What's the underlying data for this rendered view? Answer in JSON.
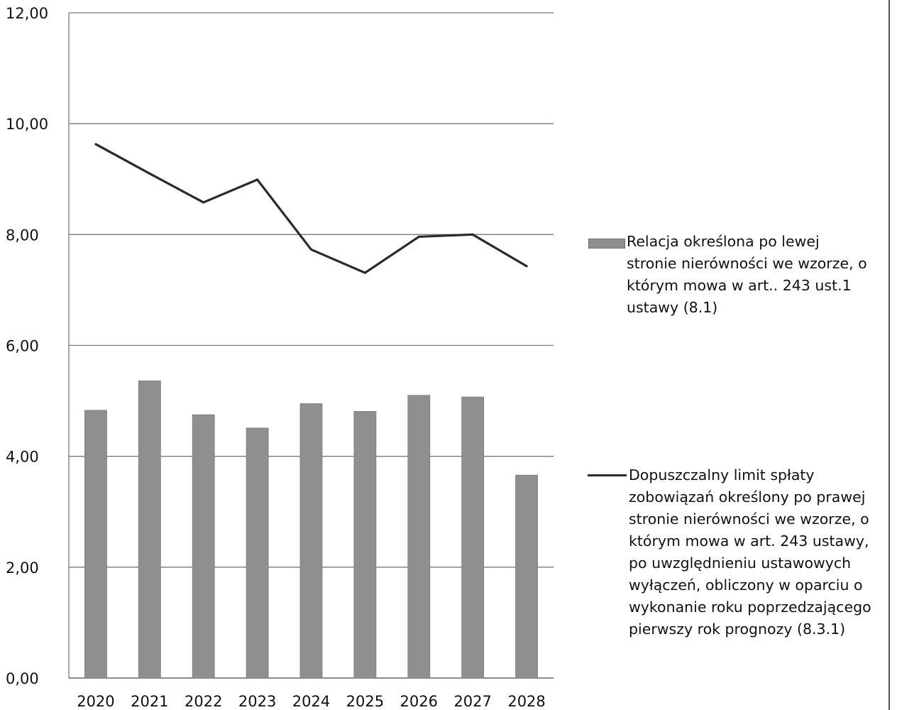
{
  "chart_data": {
    "type": "bar",
    "categories": [
      "2020",
      "2021",
      "2022",
      "2023",
      "2024",
      "2025",
      "2026",
      "2027",
      "2028"
    ],
    "series": [
      {
        "name": "Relacja określona po lewej\nstronie nierówności we wzorze, o\nktórym mowa w art.. 243 ust.1\nustawy (8.1)",
        "kind": "bar",
        "color": "#8f8f8f",
        "values": [
          4.83,
          5.36,
          4.75,
          4.51,
          4.95,
          4.81,
          5.1,
          5.07,
          3.66
        ]
      },
      {
        "name": "Dopuszczalny limit spłaty\nzobowiązań określony po prawej\nstronie nierówności we wzorze, o\nktórym mowa w art. 243 ustawy,\npo uwzględnieniu ustawowych\nwyłączeń, obliczony w oparciu o\nwykonanie roku poprzedzającego\npierwszy rok prognozy (8.3.1)",
        "kind": "line",
        "color": "#2a2a2a",
        "values": [
          9.63,
          9.1,
          8.58,
          8.99,
          7.73,
          7.31,
          7.96,
          8.0,
          7.43
        ]
      }
    ],
    "y_tick_labels": [
      "0,00",
      "2,00",
      "4,00",
      "6,00",
      "8,00",
      "10,00",
      "12,00"
    ],
    "ylim": [
      0,
      12
    ],
    "grid": true,
    "legend_position": "right",
    "title": "",
    "xlabel": "",
    "ylabel": ""
  }
}
